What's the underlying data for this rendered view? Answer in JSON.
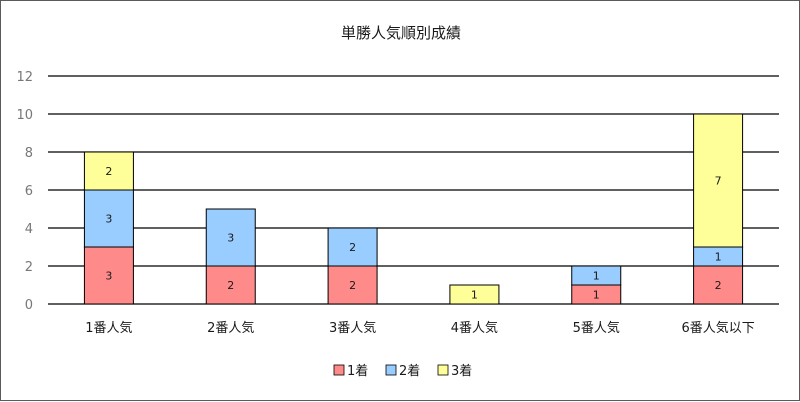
{
  "chart_data": {
    "type": "bar",
    "stacked": true,
    "title": "単勝人気順別成績",
    "xlabel": "",
    "ylabel": "",
    "categories": [
      "1番人気",
      "2番人気",
      "3番人気",
      "4番人気",
      "5番人気",
      "6番人気以下"
    ],
    "series": [
      {
        "name": "1着",
        "color": "#ff8a8a",
        "values": [
          3,
          2,
          2,
          0,
          1,
          2
        ]
      },
      {
        "name": "2着",
        "color": "#99ccff",
        "values": [
          3,
          3,
          2,
          0,
          1,
          1
        ]
      },
      {
        "name": "3着",
        "color": "#ffff99",
        "values": [
          2,
          0,
          0,
          1,
          0,
          7
        ]
      }
    ],
    "ylim": [
      0,
      12
    ],
    "yticks": [
      0,
      2,
      4,
      6,
      8,
      10,
      12
    ],
    "grid": true,
    "legend": "bottom",
    "data_labels": true
  }
}
